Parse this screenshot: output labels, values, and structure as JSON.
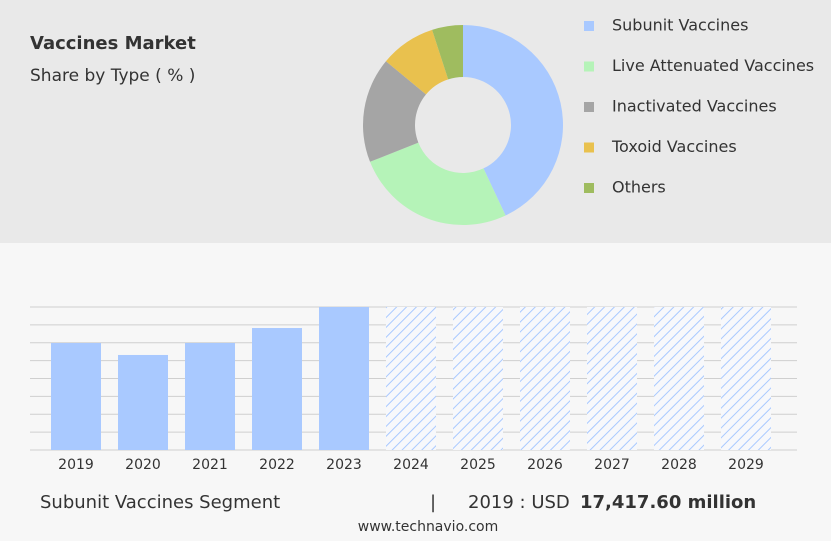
{
  "chart_data": [
    {
      "type": "pie",
      "title": "Vaccines Market",
      "subtitle": "Share by Type ( % )",
      "categories": [
        "Subunit Vaccines",
        "Live Attenuated Vaccines",
        "Inactivated Vaccines",
        "Toxoid Vaccines",
        "Others"
      ],
      "values": [
        43,
        26,
        17,
        9,
        5
      ],
      "colors": [
        "#a9c9ff",
        "#b5f3b8",
        "#a5a5a5",
        "#e9c14e",
        "#9fbc5f"
      ],
      "inner_radius_ratio": 0.48
    },
    {
      "type": "bar",
      "categories": [
        "2019",
        "2020",
        "2021",
        "2022",
        "2023",
        "2024",
        "2025",
        "2026",
        "2027",
        "2028",
        "2029"
      ],
      "values": [
        17417.6,
        15470,
        17420,
        19860,
        23280,
        null,
        null,
        null,
        null,
        null,
        null
      ],
      "color": "#a9c9ff",
      "ylim": [
        0,
        23280
      ],
      "grid": true
    }
  ],
  "footer": {
    "segment": "Subunit Vaccines Segment",
    "separator": "|",
    "year": "2019 : USD",
    "value": "17,417.60 million",
    "source": "www.technavio.com"
  }
}
